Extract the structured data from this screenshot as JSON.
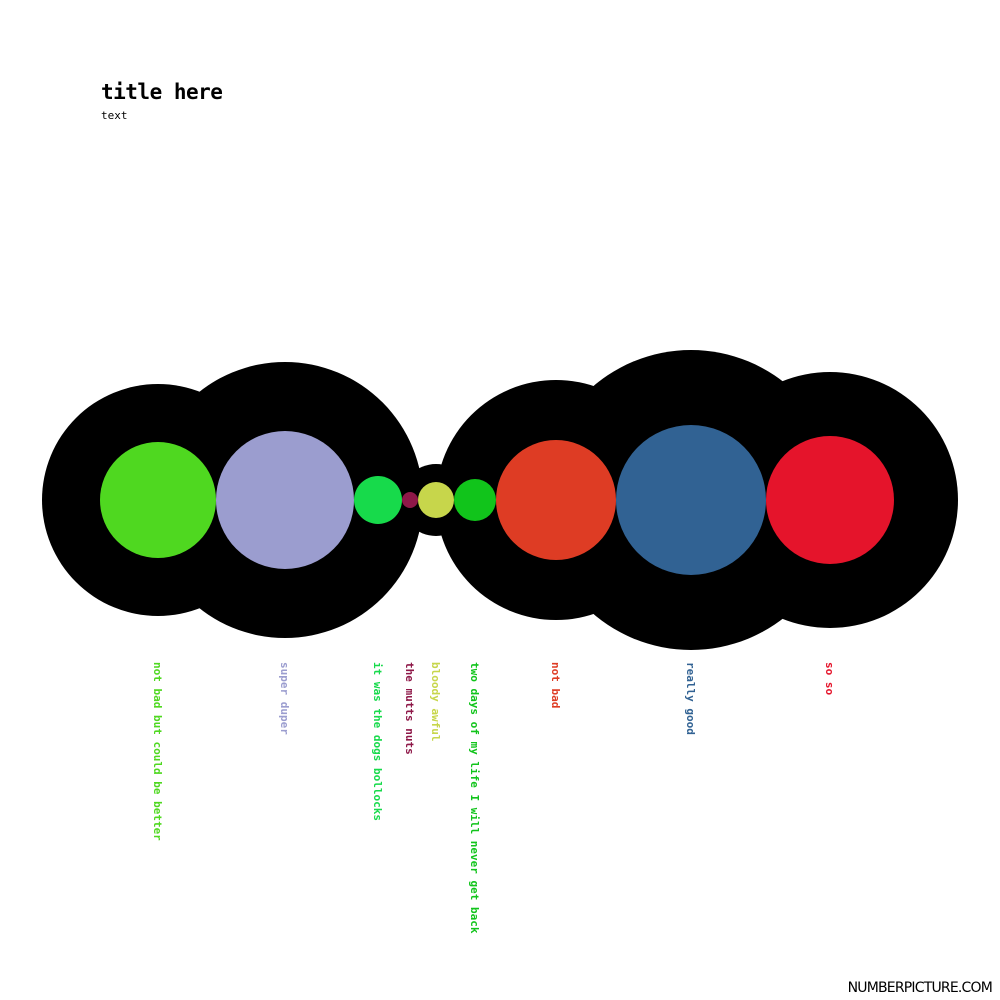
{
  "header": {
    "title": "title here",
    "subtitle": "text"
  },
  "footer": {
    "brand": "NUMBERPICTURE.COM"
  },
  "colors": {
    "background": "#ffffff",
    "ring": "#000000"
  },
  "chart_data": {
    "type": "bubble",
    "title": "title here",
    "subtitle": "text",
    "items": [
      {
        "label": "not bad but could be better",
        "value": 58,
        "color": "#4fd820"
      },
      {
        "label": "super duper",
        "value": 69,
        "color": "#9b9dcf"
      },
      {
        "label": "it was the dogs bollocks",
        "value": 24,
        "color": "#17da4b"
      },
      {
        "label": "the mutts nuts",
        "value": 8,
        "color": "#8e1848"
      },
      {
        "label": "bloody awful",
        "value": 18,
        "color": "#c7d64b"
      },
      {
        "label": "two days of my life I will never get back",
        "value": 21,
        "color": "#11c41b"
      },
      {
        "label": "not bad",
        "value": 60,
        "color": "#de3c24"
      },
      {
        "label": "really good",
        "value": 75,
        "color": "#316293"
      },
      {
        "label": "so so",
        "value": 64,
        "color": "#e5142b"
      }
    ]
  }
}
